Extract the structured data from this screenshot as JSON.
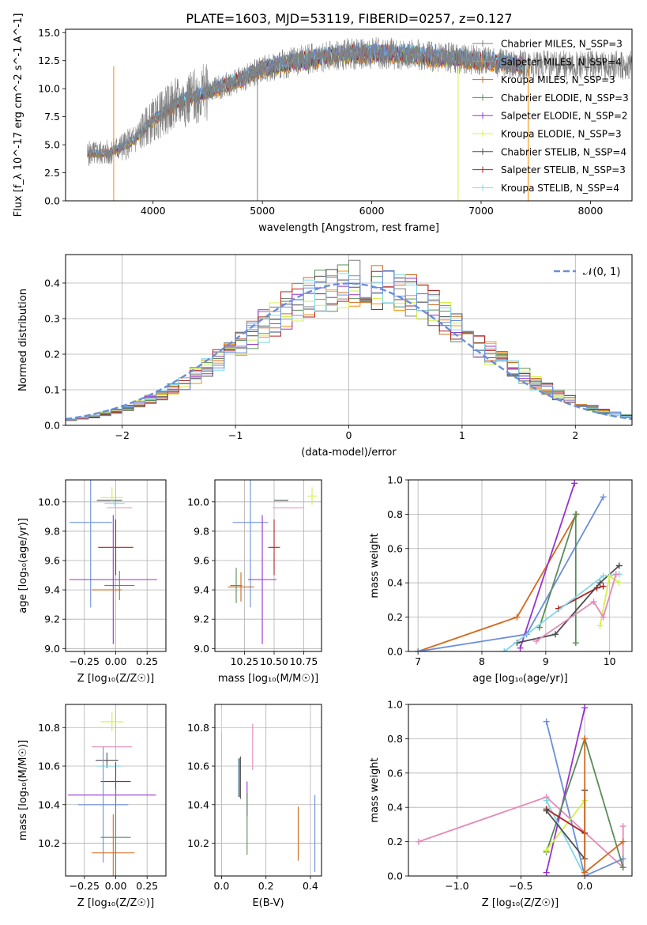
{
  "title": "PLATE=1603, MJD=53119, FIBERID=0257, z=0.127",
  "colors": {
    "chabrier_miles": "#808080",
    "salpeter_miles": "#ff8c00",
    "kroupa_miles": "#d2691e",
    "chabrier_elodie": "#5b8c5a",
    "salpeter_elodie": "#9932cc",
    "kroupa_elodie": "#d4f04a",
    "chabrier_stelib": "#4d4d4d",
    "salpeter_stelib": "#b22222",
    "kroupa_stelib": "#7fd8e8",
    "extra_blue": "#6a8fd8",
    "extra_pink": "#e58ab8"
  },
  "chart_data": [
    {
      "id": "spectrum",
      "type": "line",
      "xlabel": "wavelength [Angstrom, rest frame]",
      "ylabel": "Flux [f_λ 10^-17 erg cm^-2 s^-1 A^-1]",
      "xlim": [
        3200,
        8380
      ],
      "ylim": [
        0,
        15.3
      ],
      "xticks": [
        4000,
        5000,
        6000,
        7000,
        8000
      ],
      "yticks": [
        0.0,
        2.5,
        5.0,
        7.5,
        10.0,
        12.5,
        15.0
      ],
      "xtick_labels": [
        "4000",
        "5000",
        "6000",
        "7000",
        "8000"
      ],
      "ytick_labels": [
        "0.0",
        "2.5",
        "5.0",
        "7.5",
        "10.0",
        "12.5",
        "15.0"
      ],
      "legend": [
        "Chabrier MILES, N_SSP=3",
        "Salpeter MILES, N_SSP=4",
        "Kroupa MILES, N_SSP=3",
        "Chabrier ELODIE, N_SSP=3",
        "Salpeter ELODIE, N_SSP=2",
        "Kroupa ELODIE, N_SSP=3",
        "Chabrier STELIB, N_SSP=4",
        "Salpeter STELIB, N_SSP=3",
        "Kroupa STELIB, N_SSP=4"
      ],
      "continuum": {
        "x": [
          3400,
          3600,
          3800,
          4000,
          4200,
          4400,
          4600,
          4800,
          5000,
          5200,
          5400,
          5600,
          5800,
          6000,
          6200,
          6400,
          6600,
          6800,
          7000,
          7200,
          7400
        ],
        "y": [
          4.2,
          4.3,
          5.2,
          7.2,
          8.6,
          9.4,
          10.1,
          10.8,
          11.8,
          12.2,
          12.6,
          12.9,
          13.1,
          13.2,
          13.1,
          13.0,
          12.8,
          12.7,
          12.5,
          12.3,
          12.1
        ]
      }
    },
    {
      "id": "residuals",
      "type": "line",
      "xlabel": "(data-model)/error",
      "ylabel": "Normed distribution",
      "xlim": [
        -2.5,
        2.5
      ],
      "ylim": [
        0,
        0.48
      ],
      "xticks": [
        -2,
        -1,
        0,
        1,
        2
      ],
      "yticks": [
        0.0,
        0.1,
        0.2,
        0.3,
        0.4
      ],
      "xtick_labels": [
        "−2",
        "−1",
        "0",
        "1",
        "2"
      ],
      "ytick_labels": [
        "0.0",
        "0.1",
        "0.2",
        "0.3",
        "0.4"
      ],
      "legend": [
        "𝒩(0, 1)"
      ]
    },
    {
      "id": "age_vs_Z",
      "type": "scatter",
      "xlabel": "Z [log₁₀(Z/Z☉)]",
      "ylabel": "age  [log₁₀(age/yr)]",
      "xlim": [
        -0.4,
        0.4
      ],
      "ylim": [
        8.98,
        10.15
      ],
      "xticks": [
        -0.25,
        0.0,
        0.25
      ],
      "yticks": [
        9.0,
        9.2,
        9.4,
        9.6,
        9.8,
        10.0
      ],
      "xtick_labels": [
        "−0.25",
        "0.00",
        "0.25"
      ],
      "ytick_labels": [
        "9.0",
        "9.2",
        "9.4",
        "9.6",
        "9.8",
        "10.0"
      ],
      "points": [
        {
          "c": "chabrier_stelib",
          "x": -0.05,
          "y": 10.01,
          "xe": 0.1,
          "ye": 0.0
        },
        {
          "c": "kroupa_elodie",
          "x": -0.03,
          "y": 10.03,
          "xe": 0.09,
          "ye": 0.0
        },
        {
          "c": "kroupa_elodie",
          "x": -0.03,
          "y": 10.05,
          "xe": 0.0,
          "ye": 0.05
        },
        {
          "c": "kroupa_stelib",
          "x": -0.01,
          "y": 9.99,
          "xe": 0.08,
          "ye": 0.02
        },
        {
          "c": "extra_pink",
          "x": 0.03,
          "y": 9.96,
          "xe": 0.1,
          "ye": 0.0
        },
        {
          "c": "extra_blue",
          "x": -0.2,
          "y": 9.86,
          "xe": 0.17,
          "ye": 0.58
        },
        {
          "c": "salpeter_stelib",
          "x": 0.0,
          "y": 9.69,
          "xe": 0.14,
          "ye": 0.19
        },
        {
          "c": "chabrier_elodie",
          "x": 0.03,
          "y": 9.43,
          "xe": 0.12,
          "ye": 0.1
        },
        {
          "c": "salpeter_elodie",
          "x": -0.02,
          "y": 9.47,
          "xe": 0.35,
          "ye": 0.44
        },
        {
          "c": "kroupa_miles",
          "x": -0.07,
          "y": 9.4,
          "xe": 0.12,
          "ye": 0.0
        }
      ]
    },
    {
      "id": "age_vs_mass",
      "type": "scatter",
      "xlabel": "mass [log₁₀(M/M☉)]",
      "ylabel": "",
      "xlim": [
        10.0,
        10.9
      ],
      "ylim": [
        8.98,
        10.15
      ],
      "xticks": [
        10.25,
        10.5,
        10.75
      ],
      "yticks": [
        9.0,
        9.2,
        9.4,
        9.6,
        9.8,
        10.0
      ],
      "xtick_labels": [
        "10.25",
        "10.50",
        "10.75"
      ],
      "ytick_labels": [
        "9.0",
        "9.2",
        "9.4",
        "9.6",
        "9.8",
        "10.0"
      ],
      "points": [
        {
          "c": "chabrier_stelib",
          "x": 10.56,
          "y": 10.01,
          "xe": 0.06,
          "ye": 0.0
        },
        {
          "c": "kroupa_elodie",
          "x": 10.82,
          "y": 10.04,
          "xe": 0.04,
          "ye": 0.06
        },
        {
          "c": "extra_pink",
          "x": 10.62,
          "y": 9.96,
          "xe": 0.13,
          "ye": 0.0
        },
        {
          "c": "extra_blue",
          "x": 10.3,
          "y": 9.86,
          "xe": 0.15,
          "ye": 0.58
        },
        {
          "c": "salpeter_stelib",
          "x": 10.5,
          "y": 9.69,
          "xe": 0.05,
          "ye": 0.19
        },
        {
          "c": "kroupa_miles",
          "x": 10.22,
          "y": 9.42,
          "xe": 0.11,
          "ye": 0.1
        },
        {
          "c": "salpeter_elodie",
          "x": 10.4,
          "y": 9.47,
          "xe": 0.12,
          "ye": 0.44
        },
        {
          "c": "chabrier_elodie",
          "x": 10.18,
          "y": 9.43,
          "xe": 0.05,
          "ye": 0.12
        }
      ]
    },
    {
      "id": "massweight_vs_age",
      "type": "line",
      "xlabel": "age  [log₁₀(age/yr)]",
      "ylabel": "mass weight",
      "xlim": [
        6.85,
        10.35
      ],
      "ylim": [
        0,
        1.0
      ],
      "xticks": [
        7,
        8,
        9,
        10
      ],
      "yticks": [
        0.0,
        0.2,
        0.4,
        0.6,
        0.8,
        1.0
      ],
      "xtick_labels": [
        "7",
        "8",
        "9",
        "10"
      ],
      "ytick_labels": [
        "0.0",
        "0.2",
        "0.4",
        "0.6",
        "0.8",
        "1.0"
      ],
      "series": [
        {
          "c": "kroupa_miles",
          "x": [
            7.0,
            8.55,
            9.48
          ],
          "y": [
            0.0,
            0.2,
            0.8
          ]
        },
        {
          "c": "extra_blue",
          "x": [
            7.0,
            8.7,
            9.9
          ],
          "y": [
            0.0,
            0.1,
            0.9
          ]
        },
        {
          "c": "salpeter_elodie",
          "x": [
            8.6,
            9.45
          ],
          "y": [
            0.02,
            0.98
          ]
        },
        {
          "c": "chabrier_elodie",
          "x": [
            8.9,
            9.47,
            9.47
          ],
          "y": [
            0.14,
            0.8,
            0.05
          ]
        },
        {
          "c": "salpeter_stelib",
          "x": [
            9.2,
            9.8,
            9.9
          ],
          "y": [
            0.25,
            0.37,
            0.38
          ]
        },
        {
          "c": "chabrier_stelib",
          "x": [
            8.55,
            9.15,
            9.85,
            10.15
          ],
          "y": [
            0.05,
            0.1,
            0.4,
            0.5
          ]
        },
        {
          "c": "kroupa_stelib",
          "x": [
            8.35,
            9.9,
            10.15
          ],
          "y": [
            0.0,
            0.44,
            0.45
          ]
        },
        {
          "c": "kroupa_elodie",
          "x": [
            9.85,
            10.0,
            10.15
          ],
          "y": [
            0.15,
            0.44,
            0.4
          ]
        },
        {
          "c": "extra_pink",
          "x": [
            8.85,
            9.75,
            9.9,
            10.1
          ],
          "y": [
            0.06,
            0.29,
            0.2,
            0.45
          ]
        }
      ]
    },
    {
      "id": "mass_vs_Z",
      "type": "scatter",
      "xlabel": "Z [log₁₀(Z/Z☉)]",
      "ylabel": "mass [log₁₀(M/M☉)]",
      "xlim": [
        -0.4,
        0.4
      ],
      "ylim": [
        10.03,
        10.92
      ],
      "xticks": [
        -0.25,
        0.0,
        0.25
      ],
      "yticks": [
        10.2,
        10.4,
        10.6,
        10.8
      ],
      "xtick_labels": [
        "−0.25",
        "0.00",
        "0.25"
      ],
      "ytick_labels": [
        "10.2",
        "10.4",
        "10.6",
        "10.8"
      ],
      "points": [
        {
          "c": "kroupa_elodie",
          "x": -0.03,
          "y": 10.83,
          "xe": 0.09,
          "ye": 0.05
        },
        {
          "c": "extra_pink",
          "x": -0.03,
          "y": 10.7,
          "xe": 0.16,
          "ye": 0.0
        },
        {
          "c": "chabrier_stelib",
          "x": -0.07,
          "y": 10.63,
          "xe": 0.09,
          "ye": 0.04
        },
        {
          "c": "kroupa_stelib",
          "x": -0.05,
          "y": 10.6,
          "xe": 0.1,
          "ye": 0.0
        },
        {
          "c": "salpeter_stelib",
          "x": 0.0,
          "y": 10.52,
          "xe": 0.12,
          "ye": 0.1
        },
        {
          "c": "salpeter_elodie",
          "x": -0.03,
          "y": 10.45,
          "xe": 0.35,
          "ye": 0.0
        },
        {
          "c": "extra_blue",
          "x": -0.1,
          "y": 10.4,
          "xe": 0.2,
          "ye": 0.3
        },
        {
          "c": "chabrier_elodie",
          "x": 0.0,
          "y": 10.23,
          "xe": 0.12,
          "ye": 0.25
        },
        {
          "c": "kroupa_miles",
          "x": -0.02,
          "y": 10.15,
          "xe": 0.17,
          "ye": 0.2
        }
      ]
    },
    {
      "id": "mass_vs_ebv",
      "type": "scatter",
      "xlabel": "E(B-V)",
      "ylabel": "",
      "xlim": [
        -0.03,
        0.45
      ],
      "ylim": [
        10.03,
        10.92
      ],
      "xticks": [
        0.0,
        0.2,
        0.4
      ],
      "yticks": [
        10.2,
        10.4,
        10.6,
        10.8
      ],
      "xtick_labels": [
        "0.0",
        "0.2",
        "0.4"
      ],
      "ytick_labels": [
        "10.2",
        "10.4",
        "10.6",
        "10.8"
      ],
      "points": [
        {
          "c": "kroupa_elodie",
          "x": 0.0,
          "y": 10.84,
          "xe": 0.0,
          "ye": 0.06
        },
        {
          "c": "extra_pink",
          "x": 0.14,
          "y": 10.7,
          "xe": 0.0,
          "ye": 0.12
        },
        {
          "c": "chabrier_stelib",
          "x": 0.085,
          "y": 10.54,
          "xe": 0.0,
          "ye": 0.11
        },
        {
          "c": "kroupa_stelib",
          "x": 0.075,
          "y": 10.54,
          "xe": 0.0,
          "ye": 0.1
        },
        {
          "c": "salpeter_stelib",
          "x": 0.08,
          "y": 10.54,
          "xe": 0.0,
          "ye": 0.1
        },
        {
          "c": "salpeter_elodie",
          "x": 0.115,
          "y": 10.43,
          "xe": 0.0,
          "ye": 0.09
        },
        {
          "c": "chabrier_elodie",
          "x": 0.115,
          "y": 10.3,
          "xe": 0.0,
          "ye": 0.16
        },
        {
          "c": "kroupa_miles",
          "x": 0.345,
          "y": 10.25,
          "xe": 0.0,
          "ye": 0.14
        },
        {
          "c": "extra_blue",
          "x": 0.42,
          "y": 10.25,
          "xe": 0.0,
          "ye": 0.2
        }
      ]
    },
    {
      "id": "massweight_vs_Z",
      "type": "line",
      "xlabel": "Z [log₁₀(Z/Z☉)]",
      "ylabel": "mass weight",
      "xlim": [
        -1.38,
        0.37
      ],
      "ylim": [
        0,
        1.0
      ],
      "xticks": [
        -1.0,
        -0.5,
        0.0
      ],
      "yticks": [
        0.0,
        0.2,
        0.4,
        0.6,
        0.8,
        1.0
      ],
      "xtick_labels": [
        "−1.0",
        "−0.5",
        "0.0"
      ],
      "ytick_labels": [
        "0.0",
        "0.2",
        "0.4",
        "0.6",
        "0.8",
        "1.0"
      ],
      "series": [
        {
          "c": "extra_pink",
          "x": [
            -1.3,
            -0.3,
            0.3,
            0.3
          ],
          "y": [
            0.2,
            0.46,
            0.05,
            0.29
          ]
        },
        {
          "c": "extra_blue",
          "x": [
            -0.3,
            0.0,
            0.3
          ],
          "y": [
            0.9,
            0.0,
            0.1
          ]
        },
        {
          "c": "salpeter_elodie",
          "x": [
            -0.3,
            0.0
          ],
          "y": [
            0.02,
            0.98
          ]
        },
        {
          "c": "chabrier_elodie",
          "x": [
            -0.3,
            0.0,
            0.3
          ],
          "y": [
            0.14,
            0.8,
            0.05
          ]
        },
        {
          "c": "kroupa_elodie",
          "x": [
            -0.3,
            0.0,
            0.0
          ],
          "y": [
            0.15,
            0.44,
            0.4
          ]
        },
        {
          "c": "kroupa_stelib",
          "x": [
            -0.3,
            0.0
          ],
          "y": [
            0.44,
            0.0
          ]
        },
        {
          "c": "salpeter_stelib",
          "x": [
            -0.3,
            0.0
          ],
          "y": [
            0.39,
            0.25
          ]
        },
        {
          "c": "chabrier_stelib",
          "x": [
            -0.3,
            0.0,
            0.0
          ],
          "y": [
            0.38,
            0.1,
            0.5
          ]
        },
        {
          "c": "kroupa_miles",
          "x": [
            0.0,
            0.0,
            0.3
          ],
          "y": [
            0.8,
            0.02,
            0.2
          ]
        }
      ]
    }
  ]
}
